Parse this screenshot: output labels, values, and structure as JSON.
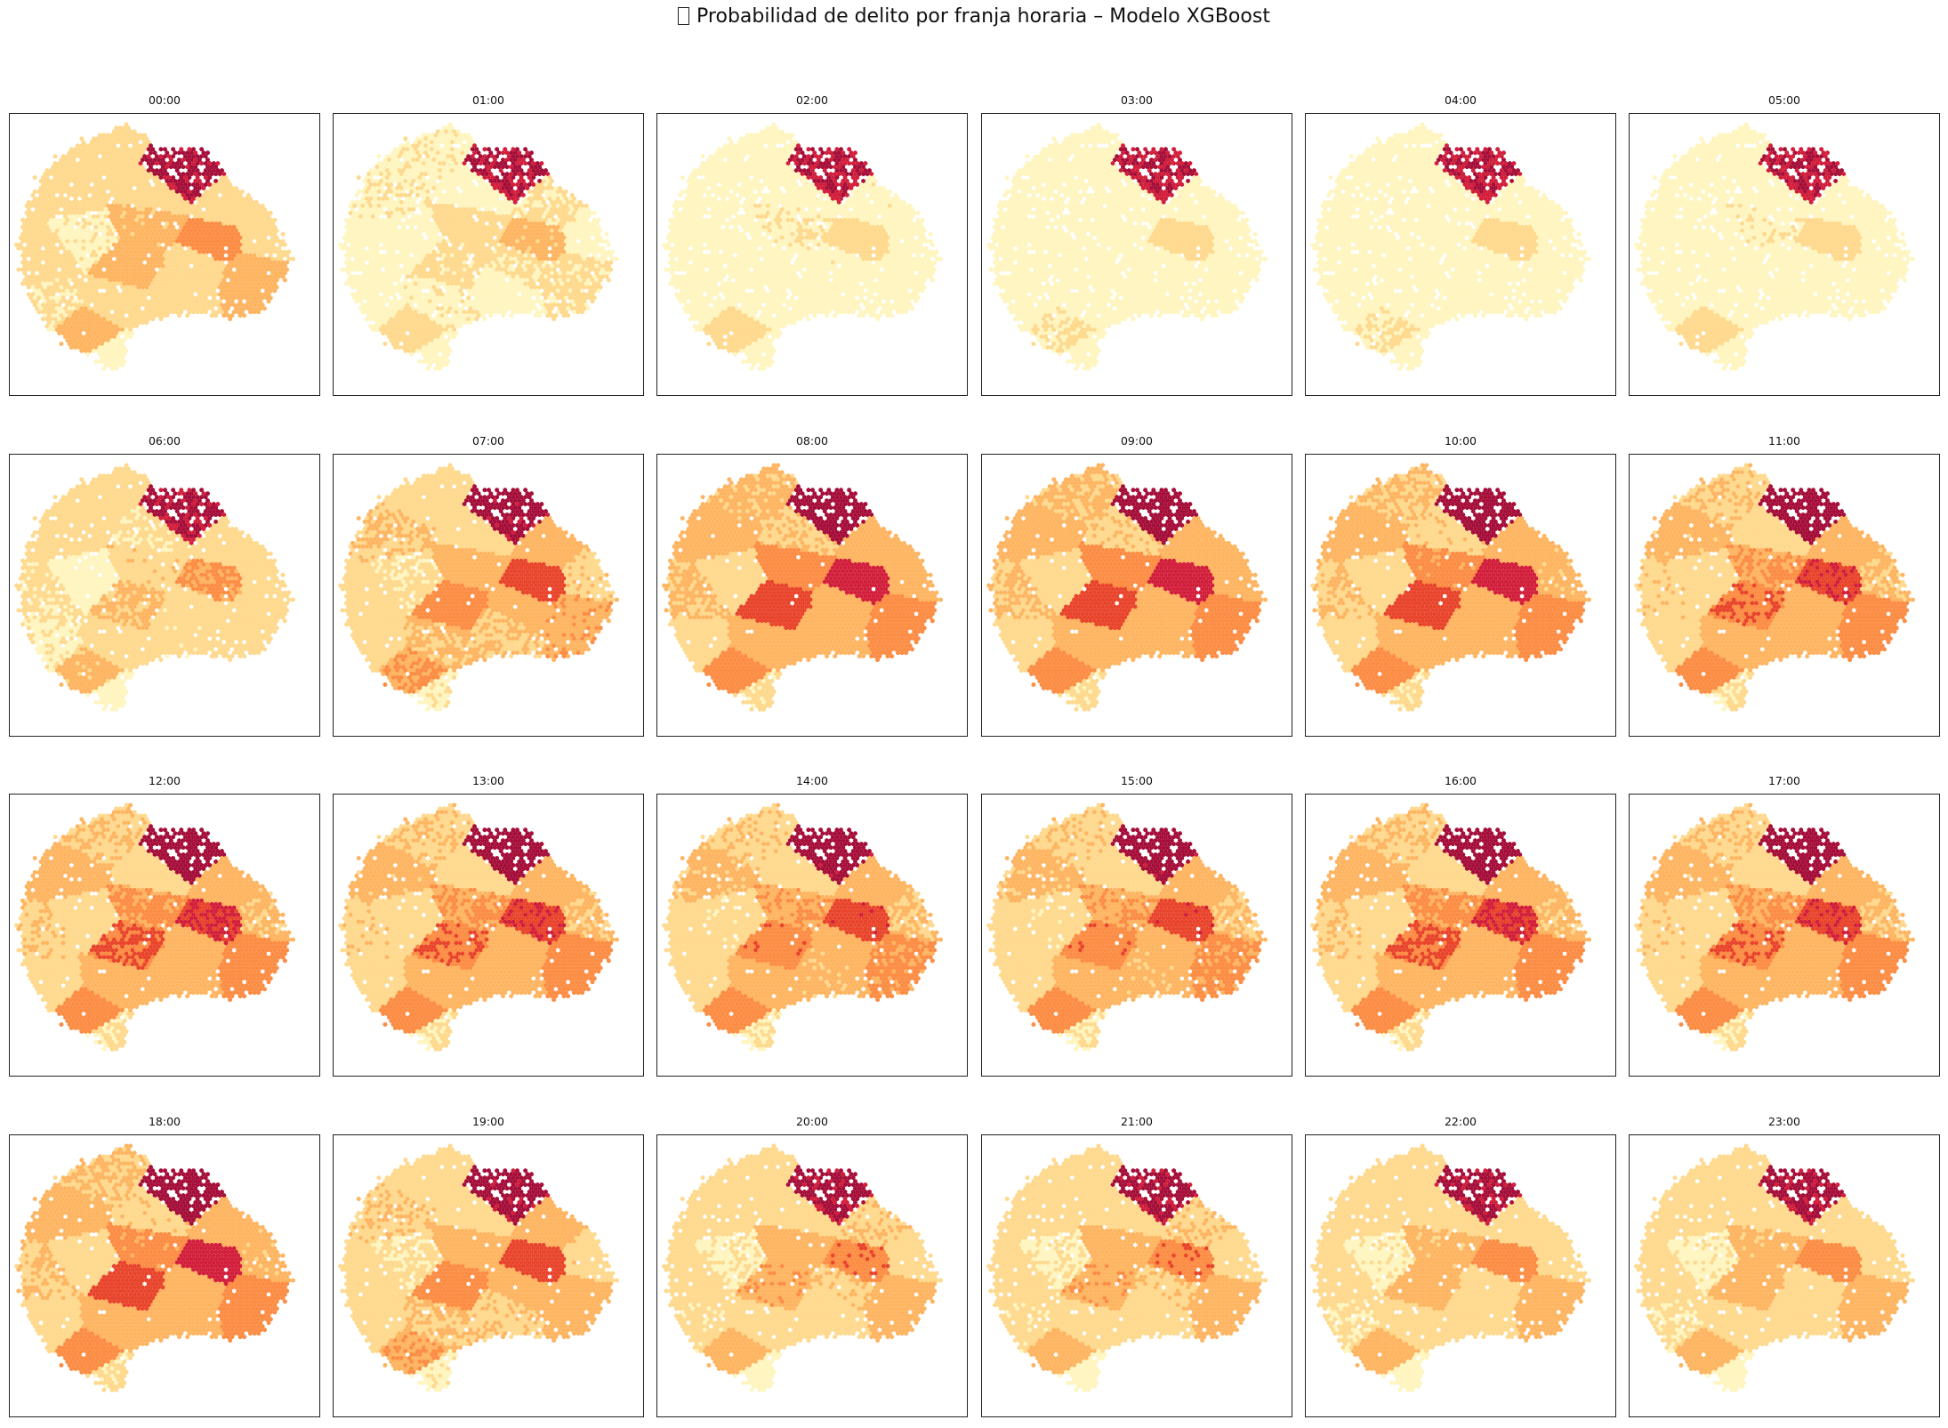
{
  "figure": {
    "title_glyph": "missing-glyph-box",
    "title_text": "Probabilidad de delito por franja horaria – Modelo XGBoost"
  },
  "chart_data": {
    "type": "heatmap",
    "subtype": "hexbin-map-small-multiples",
    "colormap": "YlOrRd",
    "colors": {
      "low": "#fff5c0",
      "mid_low": "#fed98e",
      "mid": "#feb562",
      "mid_high": "#fc8d45",
      "high": "#e8452c",
      "very_high": "#d21f3c",
      "max": "#a50f3a"
    },
    "grid": false,
    "axes_ticks": false,
    "panels": [
      {
        "title": "00:00",
        "intensity": 0.55
      },
      {
        "title": "01:00",
        "intensity": 0.28
      },
      {
        "title": "02:00",
        "intensity": 0.18
      },
      {
        "title": "03:00",
        "intensity": 0.12
      },
      {
        "title": "04:00",
        "intensity": 0.12
      },
      {
        "title": "05:00",
        "intensity": 0.16
      },
      {
        "title": "06:00",
        "intensity": 0.45
      },
      {
        "title": "07:00",
        "intensity": 0.72
      },
      {
        "title": "08:00",
        "intensity": 0.9
      },
      {
        "title": "09:00",
        "intensity": 0.88
      },
      {
        "title": "10:00",
        "intensity": 0.85
      },
      {
        "title": "11:00",
        "intensity": 0.8
      },
      {
        "title": "12:00",
        "intensity": 0.82
      },
      {
        "title": "13:00",
        "intensity": 0.8
      },
      {
        "title": "14:00",
        "intensity": 0.78
      },
      {
        "title": "15:00",
        "intensity": 0.78
      },
      {
        "title": "16:00",
        "intensity": 0.82
      },
      {
        "title": "17:00",
        "intensity": 0.8
      },
      {
        "title": "18:00",
        "intensity": 0.85
      },
      {
        "title": "19:00",
        "intensity": 0.7
      },
      {
        "title": "20:00",
        "intensity": 0.6
      },
      {
        "title": "21:00",
        "intensity": 0.6
      },
      {
        "title": "22:00",
        "intensity": 0.55
      },
      {
        "title": "23:00",
        "intensity": 0.55
      }
    ]
  }
}
